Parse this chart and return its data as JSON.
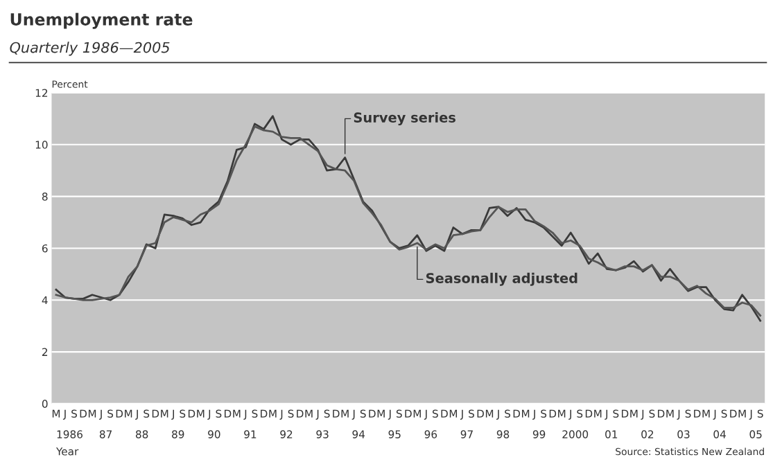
{
  "chart_data": {
    "type": "line",
    "title": "Unemployment rate",
    "subtitle": "Quarterly 1986—2005",
    "ylabel": "Percent",
    "xlabel": "Year",
    "categories": [
      "M",
      "J",
      "S",
      "D",
      "M",
      "J",
      "S",
      "D",
      "M",
      "J",
      "S",
      "D",
      "M",
      "J",
      "S",
      "D",
      "M",
      "J",
      "S",
      "D",
      "M",
      "J",
      "S",
      "D",
      "M",
      "J",
      "S",
      "D",
      "M",
      "J",
      "S",
      "D",
      "M",
      "J",
      "S",
      "D",
      "M",
      "J",
      "S",
      "D",
      "M",
      "J",
      "S",
      "D",
      "M",
      "J",
      "S",
      "D",
      "M",
      "J",
      "S",
      "D",
      "M",
      "J",
      "S",
      "D",
      "M",
      "J",
      "S",
      "D",
      "M",
      "J",
      "S",
      "D",
      "M",
      "J",
      "S",
      "D",
      "M",
      "J",
      "S",
      "D",
      "M",
      "J",
      "S",
      "D",
      "M",
      "J",
      "S"
    ],
    "series": [
      {
        "name": "Survey series",
        "color": "#3a3a3a",
        "values": [
          4.4,
          4.1,
          4.05,
          4.05,
          4.2,
          4.1,
          4.0,
          4.2,
          4.7,
          5.3,
          6.15,
          6.0,
          7.3,
          7.25,
          7.15,
          6.9,
          7.0,
          7.5,
          7.8,
          8.6,
          9.8,
          9.9,
          10.8,
          10.6,
          11.1,
          10.2,
          10.0,
          10.2,
          10.2,
          9.8,
          9.0,
          9.05,
          9.5,
          8.65,
          7.8,
          7.45,
          6.85,
          6.25,
          6.0,
          6.1,
          6.5,
          5.9,
          6.1,
          5.9,
          6.8,
          6.55,
          6.7,
          6.7,
          7.55,
          7.6,
          7.25,
          7.55,
          7.1,
          7.0,
          6.8,
          6.45,
          6.1,
          6.6,
          6.05,
          5.4,
          5.8,
          5.2,
          5.15,
          5.25,
          5.5,
          5.1,
          5.35,
          4.75,
          5.2,
          4.75,
          4.35,
          4.5,
          4.5,
          4.0,
          3.65,
          3.6,
          4.2,
          3.75,
          3.2
        ]
      },
      {
        "name": "Seasonally adjusted",
        "color": "#555555",
        "values": [
          4.2,
          4.1,
          4.05,
          4.0,
          4.0,
          4.05,
          4.1,
          4.2,
          4.9,
          5.3,
          6.1,
          6.2,
          7.0,
          7.2,
          7.1,
          7.0,
          7.3,
          7.45,
          7.7,
          8.5,
          9.4,
          10.0,
          10.7,
          10.55,
          10.5,
          10.3,
          10.25,
          10.25,
          10.0,
          9.75,
          9.2,
          9.05,
          9.0,
          8.6,
          7.75,
          7.35,
          6.9,
          6.25,
          5.95,
          6.05,
          6.2,
          5.95,
          6.15,
          6.0,
          6.5,
          6.55,
          6.65,
          6.7,
          7.2,
          7.6,
          7.4,
          7.5,
          7.5,
          7.05,
          6.85,
          6.6,
          6.2,
          6.3,
          6.1,
          5.6,
          5.45,
          5.25,
          5.15,
          5.3,
          5.3,
          5.15,
          5.35,
          4.9,
          4.9,
          4.75,
          4.4,
          4.55,
          4.25,
          4.05,
          3.7,
          3.7,
          3.9,
          3.8,
          3.4
        ]
      }
    ],
    "ylim": [
      0,
      12
    ],
    "yticks": [
      0,
      2,
      4,
      6,
      8,
      10,
      12
    ],
    "grid": "y",
    "legend": false,
    "annotations": [
      "1986",
      "87",
      "88",
      "89",
      "90",
      "91",
      "92",
      "93",
      "94",
      "95",
      "96",
      "97",
      "98",
      "99",
      "2000",
      "01",
      "02",
      "03",
      "04",
      "05",
      "Source: Statistics New Zealand"
    ]
  }
}
